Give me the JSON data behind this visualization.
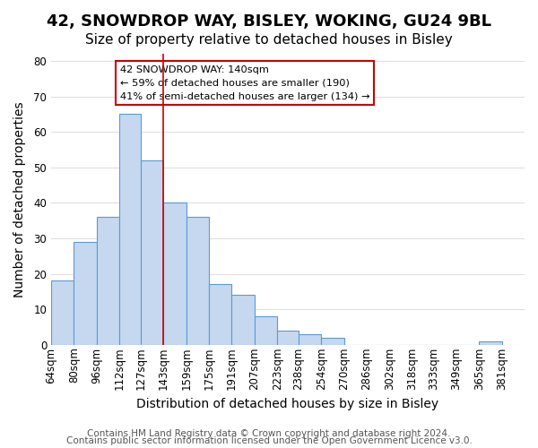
{
  "title": "42, SNOWDROP WAY, BISLEY, WOKING, GU24 9BL",
  "subtitle": "Size of property relative to detached houses in Bisley",
  "xlabel": "Distribution of detached houses by size in Bisley",
  "ylabel": "Number of detached properties",
  "bar_left_edges": [
    64,
    80,
    96,
    112,
    127,
    143,
    159,
    175,
    191,
    207,
    223,
    238,
    254,
    270,
    286,
    302,
    318,
    333,
    349,
    365
  ],
  "bar_heights": [
    18,
    29,
    36,
    65,
    52,
    40,
    36,
    17,
    14,
    8,
    4,
    3,
    2,
    0,
    0,
    0,
    0,
    0,
    0,
    1
  ],
  "bar_widths": [
    16,
    16,
    16,
    15,
    16,
    16,
    16,
    16,
    16,
    16,
    15,
    16,
    16,
    16,
    16,
    16,
    15,
    16,
    16,
    16
  ],
  "tick_positions": [
    64,
    80,
    96,
    112,
    127,
    143,
    159,
    175,
    191,
    207,
    223,
    238,
    254,
    270,
    286,
    302,
    318,
    333,
    349,
    365,
    381
  ],
  "tick_labels": [
    "64sqm",
    "80sqm",
    "96sqm",
    "112sqm",
    "127sqm",
    "143sqm",
    "159sqm",
    "175sqm",
    "191sqm",
    "207sqm",
    "223sqm",
    "238sqm",
    "254sqm",
    "270sqm",
    "286sqm",
    "302sqm",
    "318sqm",
    "333sqm",
    "349sqm",
    "365sqm",
    "381sqm"
  ],
  "bar_color": "#c5d8f0",
  "bar_edge_color": "#5b9bd5",
  "reference_line_x": 143,
  "ylim": [
    0,
    82
  ],
  "yticks": [
    0,
    10,
    20,
    30,
    40,
    50,
    60,
    70,
    80
  ],
  "annotation_title": "42 SNOWDROP WAY: 140sqm",
  "annotation_line1": "← 59% of detached houses are smaller (190)",
  "annotation_line2": "41% of semi-detached houses are larger (134) →",
  "annotation_box_color": "#ffffff",
  "annotation_box_edge": "#cc0000",
  "footer1": "Contains HM Land Registry data © Crown copyright and database right 2024.",
  "footer2": "Contains public sector information licensed under the Open Government Licence v3.0.",
  "background_color": "#ffffff",
  "grid_color": "#e0e0e0",
  "title_fontsize": 13,
  "subtitle_fontsize": 11,
  "axis_label_fontsize": 10,
  "tick_fontsize": 8.5,
  "footer_fontsize": 7.5
}
